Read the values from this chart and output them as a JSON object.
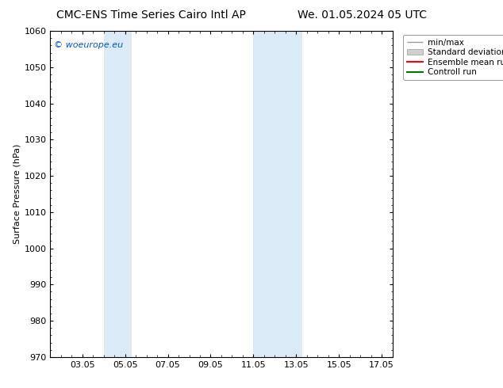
{
  "title_left": "CMC-ENS Time Series Cairo Intl AP",
  "title_right": "We. 01.05.2024 05 UTC",
  "ylabel": "Surface Pressure (hPa)",
  "ylim": [
    970,
    1060
  ],
  "yticks": [
    970,
    980,
    990,
    1000,
    1010,
    1020,
    1030,
    1040,
    1050,
    1060
  ],
  "xtick_labels": [
    "03.05",
    "05.05",
    "07.05",
    "09.05",
    "11.05",
    "13.05",
    "15.05",
    "17.05"
  ],
  "xtick_positions": [
    1,
    3,
    5,
    7,
    9,
    11,
    13,
    15
  ],
  "xlim": [
    -0.5,
    15.5
  ],
  "shaded_regions": [
    {
      "x_start": 2.0,
      "x_end": 3.3,
      "color": "#daeaf7"
    },
    {
      "x_start": 9.0,
      "x_end": 11.3,
      "color": "#daeaf7"
    }
  ],
  "watermark": "© woeurope.eu",
  "watermark_color": "#0055cc",
  "background_color": "#ffffff",
  "spine_color": "#000000",
  "legend_entries": [
    {
      "label": "min/max",
      "color": "#aaaaaa",
      "style": "minmax"
    },
    {
      "label": "Standard deviation",
      "color": "#cccccc",
      "style": "std"
    },
    {
      "label": "Ensemble mean run",
      "color": "#ff0000",
      "style": "line"
    },
    {
      "label": "Controll run",
      "color": "#007700",
      "style": "line"
    }
  ],
  "title_fontsize": 10,
  "axis_label_fontsize": 8,
  "tick_fontsize": 8,
  "legend_fontsize": 7.5,
  "watermark_fontsize": 8
}
